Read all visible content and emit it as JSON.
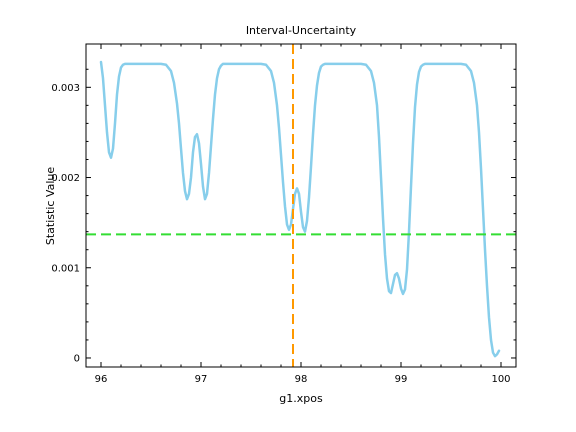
{
  "chart_data": {
    "type": "line",
    "title": "Interval-Uncertainty",
    "xlabel": "g1.xpos",
    "ylabel": "Statistic Value",
    "xlim": [
      95.85,
      100.15
    ],
    "ylim": [
      -0.0001,
      0.00348
    ],
    "x_ticks": [
      96,
      97,
      98,
      99,
      100
    ],
    "x_tick_labels": [
      "96",
      "97",
      "98",
      "99",
      "100"
    ],
    "y_ticks": [
      0,
      0.001,
      0.002,
      0.003
    ],
    "y_tick_labels": [
      "0",
      "0.001",
      "0.002",
      "0.003"
    ],
    "grid": false,
    "series": [
      {
        "color": "#87ceeb",
        "x": [
          96.0,
          96.02,
          96.04,
          96.06,
          96.08,
          96.1,
          96.12,
          96.14,
          96.16,
          96.18,
          96.2,
          96.22,
          96.24,
          96.26,
          96.3,
          96.35,
          96.4,
          96.5,
          96.6,
          96.65,
          96.7,
          96.73,
          96.76,
          96.78,
          96.8,
          96.82,
          96.84,
          96.86,
          96.88,
          96.9,
          96.92,
          96.94,
          96.96,
          96.98,
          97.0,
          97.02,
          97.04,
          97.06,
          97.08,
          97.1,
          97.12,
          97.14,
          97.16,
          97.18,
          97.2,
          97.22,
          97.24,
          97.26,
          97.3,
          97.35,
          97.4,
          97.5,
          97.6,
          97.65,
          97.7,
          97.73,
          97.76,
          97.78,
          97.8,
          97.82,
          97.84,
          97.86,
          97.88,
          97.9,
          97.92,
          97.94,
          97.96,
          97.98,
          98.0,
          98.02,
          98.04,
          98.06,
          98.08,
          98.1,
          98.12,
          98.14,
          98.16,
          98.18,
          98.2,
          98.22,
          98.24,
          98.26,
          98.3,
          98.35,
          98.4,
          98.5,
          98.6,
          98.65,
          98.7,
          98.73,
          98.76,
          98.78,
          98.8,
          98.82,
          98.84,
          98.86,
          98.88,
          98.9,
          98.92,
          98.94,
          98.96,
          98.98,
          99.0,
          99.02,
          99.04,
          99.06,
          99.08,
          99.1,
          99.12,
          99.14,
          99.16,
          99.18,
          99.2,
          99.22,
          99.24,
          99.26,
          99.3,
          99.35,
          99.4,
          99.5,
          99.6,
          99.65,
          99.7,
          99.73,
          99.76,
          99.78,
          99.8,
          99.82,
          99.84,
          99.86,
          99.88,
          99.9,
          99.92,
          99.94,
          99.96,
          99.97,
          99.98
        ],
        "y": [
          0.00328,
          0.0031,
          0.0028,
          0.0025,
          0.00228,
          0.00222,
          0.00232,
          0.0026,
          0.00292,
          0.00312,
          0.00322,
          0.00325,
          0.00326,
          0.00326,
          0.00326,
          0.00326,
          0.00326,
          0.00326,
          0.00326,
          0.00325,
          0.00318,
          0.00305,
          0.00282,
          0.0026,
          0.00232,
          0.00205,
          0.00185,
          0.00176,
          0.00182,
          0.002,
          0.00228,
          0.00245,
          0.00248,
          0.00238,
          0.00215,
          0.0019,
          0.00176,
          0.00182,
          0.00205,
          0.00235,
          0.00265,
          0.00292,
          0.0031,
          0.0032,
          0.00324,
          0.00326,
          0.00326,
          0.00326,
          0.00326,
          0.00326,
          0.00326,
          0.00326,
          0.00326,
          0.00325,
          0.00318,
          0.00305,
          0.0028,
          0.00255,
          0.00225,
          0.00195,
          0.00168,
          0.00148,
          0.00142,
          0.00148,
          0.00165,
          0.00182,
          0.00188,
          0.00182,
          0.00162,
          0.00145,
          0.0014,
          0.00152,
          0.00178,
          0.00212,
          0.00248,
          0.0028,
          0.00302,
          0.00316,
          0.00323,
          0.00325,
          0.00326,
          0.00326,
          0.00326,
          0.00326,
          0.00326,
          0.00326,
          0.00326,
          0.00325,
          0.00318,
          0.00305,
          0.0028,
          0.00245,
          0.002,
          0.00155,
          0.00115,
          0.00088,
          0.00074,
          0.00072,
          0.00082,
          0.00092,
          0.00094,
          0.00088,
          0.00077,
          0.00071,
          0.00076,
          0.00098,
          0.0014,
          0.0019,
          0.00238,
          0.00278,
          0.00303,
          0.00317,
          0.00323,
          0.00325,
          0.00326,
          0.00326,
          0.00326,
          0.00326,
          0.00326,
          0.00326,
          0.00326,
          0.00325,
          0.00318,
          0.00305,
          0.0028,
          0.0025,
          0.0021,
          0.00165,
          0.0012,
          0.0008,
          0.00045,
          0.0002,
          6e-05,
          2e-05,
          4e-05,
          6e-05,
          8e-05
        ]
      }
    ],
    "reference_lines": [
      {
        "orientation": "horizontal",
        "value": 0.00137,
        "color": "#33dd33",
        "style": "dashed"
      },
      {
        "orientation": "vertical",
        "value": 97.92,
        "color": "#ff9900",
        "style": "dashed"
      }
    ]
  }
}
